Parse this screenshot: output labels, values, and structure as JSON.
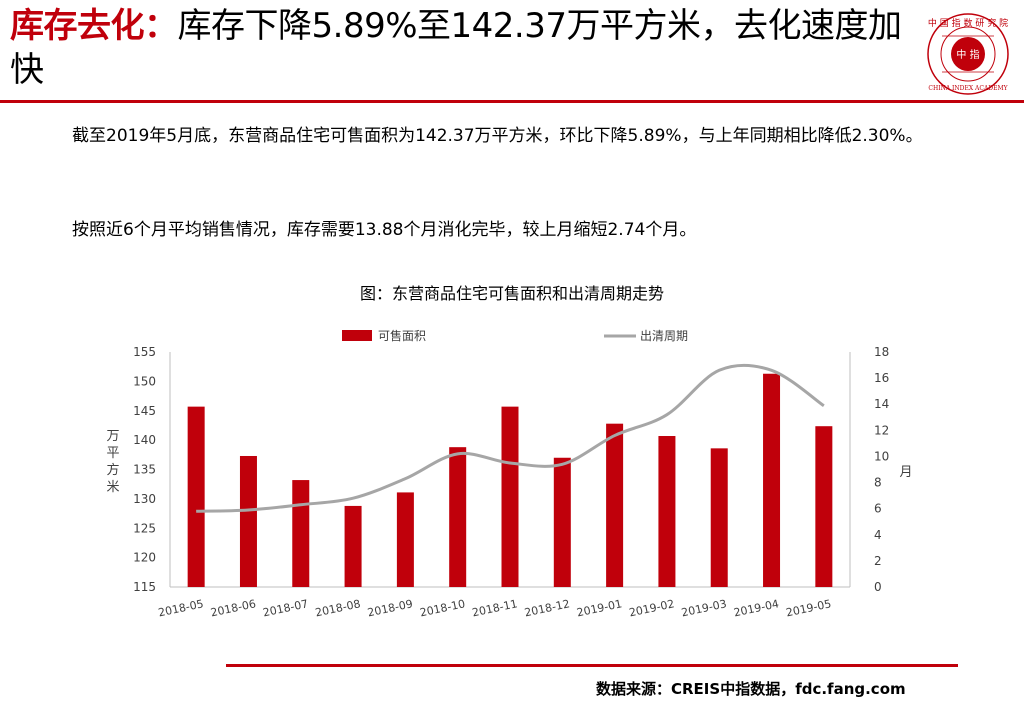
{
  "header": {
    "title_highlight": "库存去化：",
    "title_rest": "库存下降5.89%至142.37万平方米，去化速度加快"
  },
  "logo": {
    "ring_text": "中国指数研究院",
    "inner_text": "中 指",
    "sub_text": "CHINA INDEX ACADEMY"
  },
  "body": {
    "paragraph1": "截至2019年5月底，东营商品住宅可售面积为142.37万平方米，环比下降5.89%，与上年同期相比降低2.30%。",
    "paragraph2": "按照近6个月平均销售情况，库存需要13.88个月消化完毕，较上月缩短2.74个月。"
  },
  "chart_data": {
    "type": "bar",
    "title": "图：东营商品住宅可售面积和出清周期走势",
    "categories": [
      "2018-05",
      "2018-06",
      "2018-07",
      "2018-08",
      "2018-09",
      "2018-10",
      "2018-11",
      "2018-12",
      "2019-01",
      "2019-02",
      "2019-03",
      "2019-04",
      "2019-05"
    ],
    "series": [
      {
        "name": "可售面积",
        "type": "bar",
        "axis": "left",
        "color": "#c0000b",
        "values": [
          145.7,
          137.3,
          133.2,
          128.8,
          131.1,
          138.8,
          145.7,
          137.0,
          142.8,
          140.7,
          138.6,
          151.3,
          142.37
        ]
      },
      {
        "name": "出清周期",
        "type": "line",
        "axis": "right",
        "color": "#a6a6a6",
        "values": [
          5.8,
          5.9,
          6.3,
          6.8,
          8.3,
          10.2,
          9.5,
          9.4,
          11.6,
          13.2,
          16.6,
          16.6,
          13.88
        ]
      }
    ],
    "ylabel": "万平方米",
    "ylim": [
      115,
      155
    ],
    "yticks": [
      "155",
      "150",
      "145",
      "140",
      "135",
      "130",
      "125",
      "120",
      "115"
    ],
    "y2label": "月",
    "y2lim": [
      0,
      18
    ],
    "y2ticks": [
      "18",
      "16",
      "14",
      "12",
      "10",
      "8",
      "6",
      "4",
      "2",
      "0"
    ],
    "legend_position": "top",
    "grid": false
  },
  "footer": {
    "source": "数据来源：CREIS中指数据，fdc.fang.com"
  }
}
